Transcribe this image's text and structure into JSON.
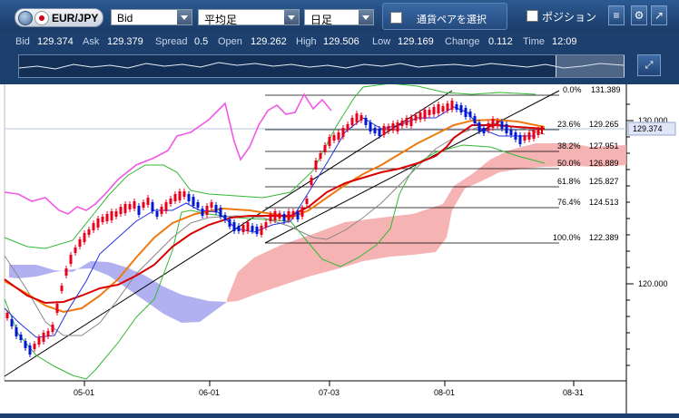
{
  "toolbar": {
    "pair": "EUR/JPY",
    "price_type": "Bid",
    "indicator": "平均足",
    "timeframe": "日足",
    "pair_select_label": "通貨ペアを選択",
    "position_label": "ポジション",
    "icons": [
      "globe-icon",
      "japan-flag-icon",
      "menu-icon",
      "gear-icon",
      "popout-icon"
    ]
  },
  "quote": {
    "bid_label": "Bid",
    "bid": "129.374",
    "ask_label": "Ask",
    "ask": "129.379",
    "spread_label": "Spread",
    "spread": "0.5",
    "open_label": "Open",
    "open": "129.262",
    "high_label": "High",
    "high": "129.506",
    "low_label": "Low",
    "low": "129.169",
    "change_label": "Change",
    "change": "0.112",
    "time_label": "Time",
    "time": "12:09"
  },
  "chart": {
    "current_price": "129.374",
    "price_labels": [
      "130.000",
      "120.000"
    ],
    "date_labels": [
      "05-01",
      "06-01",
      "07-03",
      "08-01",
      "08-31"
    ],
    "fib_levels": [
      {
        "pct": "0.0%",
        "price": "131.389"
      },
      {
        "pct": "23.6%",
        "price": "129.265"
      },
      {
        "pct": "38.2%",
        "price": "127.951"
      },
      {
        "pct": "50.0%",
        "price": "126.889"
      },
      {
        "pct": "61.8%",
        "price": "125.827"
      },
      {
        "pct": "76.4%",
        "price": "124.513"
      },
      {
        "pct": "100.0%",
        "price": "122.389"
      }
    ],
    "colors": {
      "bull_candle": "#e8001c",
      "bear_candle": "#0018d6",
      "cloud_bull": "#f4a6a6",
      "cloud_bear": "#a3a3ee",
      "ma_short": "#d80000",
      "ma_mid": "#f07810",
      "bollinger": "#33b833",
      "chikou": "#f058e6",
      "tenkan": "#2233dd"
    }
  }
}
